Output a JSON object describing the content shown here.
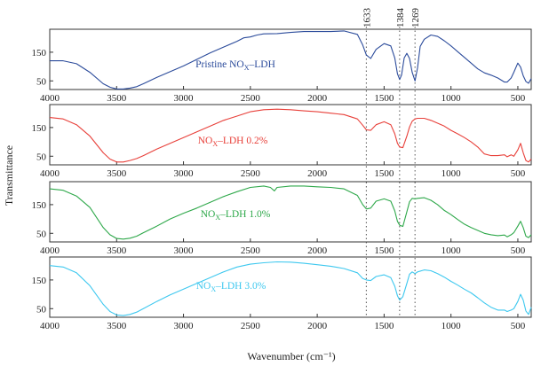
{
  "chart_data": {
    "type": "line",
    "xlabel": "Wavenumber (cm⁻¹)",
    "ylabel": "Transmittance",
    "xlim": [
      4000,
      400
    ],
    "ylim": [
      20,
      230
    ],
    "x_ticks": [
      4000,
      3500,
      3000,
      2500,
      2000,
      1500,
      1000,
      500
    ],
    "y_ticks": [
      50,
      150
    ],
    "reference_lines": [
      {
        "x": 1633,
        "label": "1633"
      },
      {
        "x": 1384,
        "label": "1384"
      },
      {
        "x": 1269,
        "label": "1269"
      }
    ],
    "series": [
      {
        "name": "Pristine NOₓ–LDH",
        "label_main": "Pristine NO",
        "label_sub": "X",
        "label_tail": "–LDH",
        "color": "#2b4b9b",
        "x": [
          4000,
          3900,
          3800,
          3700,
          3600,
          3550,
          3500,
          3450,
          3400,
          3350,
          3300,
          3200,
          3100,
          3000,
          2900,
          2800,
          2700,
          2600,
          2550,
          2500,
          2450,
          2400,
          2300,
          2200,
          2100,
          2000,
          1900,
          1800,
          1700,
          1660,
          1633,
          1600,
          1560,
          1500,
          1450,
          1420,
          1400,
          1384,
          1370,
          1350,
          1330,
          1310,
          1290,
          1269,
          1250,
          1230,
          1200,
          1150,
          1100,
          1050,
          1000,
          950,
          900,
          850,
          800,
          750,
          700,
          650,
          600,
          580,
          550,
          530,
          500,
          480,
          460,
          440,
          420,
          400
        ],
        "y": [
          120,
          120,
          110,
          80,
          40,
          28,
          22,
          22,
          25,
          30,
          40,
          62,
          82,
          102,
          125,
          148,
          168,
          188,
          200,
          203,
          210,
          214,
          215,
          219,
          222,
          222,
          222,
          224,
          212,
          175,
          140,
          128,
          160,
          180,
          172,
          130,
          75,
          55,
          70,
          130,
          146,
          128,
          80,
          50,
          95,
          170,
          195,
          210,
          205,
          190,
          172,
          152,
          132,
          112,
          92,
          78,
          70,
          60,
          46,
          46,
          60,
          80,
          112,
          98,
          68,
          48,
          42,
          58
        ]
      },
      {
        "name": "NOₓ–LDH 0.2%",
        "label_main": "NO",
        "label_sub": "X",
        "label_tail": "–LDH 0.2%",
        "color": "#e8403a",
        "x": [
          4000,
          3900,
          3800,
          3700,
          3600,
          3550,
          3500,
          3450,
          3400,
          3350,
          3300,
          3200,
          3100,
          3000,
          2900,
          2800,
          2700,
          2600,
          2500,
          2400,
          2300,
          2200,
          2100,
          2000,
          1900,
          1800,
          1700,
          1660,
          1633,
          1600,
          1560,
          1500,
          1450,
          1420,
          1400,
          1384,
          1360,
          1330,
          1310,
          1290,
          1269,
          1250,
          1200,
          1150,
          1100,
          1050,
          1000,
          950,
          900,
          850,
          800,
          750,
          700,
          650,
          600,
          580,
          550,
          530,
          500,
          480,
          460,
          440,
          420,
          400
        ],
        "y": [
          185,
          180,
          160,
          120,
          62,
          40,
          30,
          30,
          35,
          42,
          52,
          75,
          95,
          115,
          135,
          155,
          175,
          190,
          205,
          212,
          214,
          212,
          208,
          205,
          200,
          195,
          180,
          158,
          142,
          140,
          160,
          170,
          160,
          128,
          95,
          82,
          80,
          120,
          152,
          172,
          180,
          182,
          182,
          175,
          165,
          155,
          140,
          128,
          115,
          100,
          82,
          58,
          52,
          52,
          55,
          48,
          55,
          50,
          72,
          95,
          62,
          35,
          30,
          40
        ]
      },
      {
        "name": "NOₓ–LDH 1.0%",
        "label_main": "NO",
        "label_sub": "X",
        "label_tail": "–LDH 1.0%",
        "color": "#2ea84a",
        "x": [
          4000,
          3900,
          3800,
          3700,
          3600,
          3550,
          3500,
          3450,
          3400,
          3350,
          3300,
          3200,
          3100,
          3000,
          2900,
          2800,
          2700,
          2600,
          2500,
          2400,
          2350,
          2320,
          2300,
          2200,
          2100,
          2000,
          1900,
          1800,
          1700,
          1660,
          1633,
          1600,
          1560,
          1500,
          1450,
          1420,
          1400,
          1384,
          1360,
          1330,
          1310,
          1290,
          1269,
          1250,
          1200,
          1150,
          1100,
          1050,
          1000,
          950,
          900,
          850,
          800,
          750,
          700,
          650,
          600,
          580,
          550,
          530,
          500,
          480,
          460,
          440,
          420,
          400
        ],
        "y": [
          205,
          200,
          180,
          140,
          70,
          45,
          32,
          30,
          33,
          40,
          52,
          75,
          100,
          120,
          138,
          158,
          178,
          195,
          210,
          215,
          210,
          198,
          210,
          215,
          215,
          212,
          210,
          205,
          182,
          150,
          135,
          138,
          162,
          170,
          162,
          128,
          92,
          78,
          74,
          125,
          160,
          172,
          170,
          172,
          174,
          165,
          150,
          130,
          115,
          98,
          82,
          70,
          60,
          50,
          45,
          42,
          44,
          38,
          45,
          52,
          75,
          92,
          70,
          40,
          35,
          45
        ]
      },
      {
        "name": "NOₓ–LDH 3.0%",
        "label_main": "NO",
        "label_sub": "X",
        "label_tail": "–LDH 3.0%",
        "color": "#3ec8ef",
        "x": [
          4000,
          3900,
          3800,
          3700,
          3600,
          3550,
          3500,
          3450,
          3400,
          3350,
          3300,
          3200,
          3100,
          3000,
          2900,
          2800,
          2700,
          2600,
          2500,
          2400,
          2300,
          2200,
          2100,
          2000,
          1900,
          1800,
          1700,
          1660,
          1633,
          1600,
          1560,
          1500,
          1450,
          1420,
          1400,
          1384,
          1360,
          1330,
          1310,
          1290,
          1269,
          1250,
          1200,
          1150,
          1100,
          1050,
          1000,
          950,
          900,
          850,
          800,
          750,
          700,
          650,
          600,
          580,
          550,
          530,
          500,
          480,
          460,
          440,
          420,
          400
        ],
        "y": [
          200,
          195,
          175,
          130,
          65,
          40,
          28,
          26,
          30,
          38,
          50,
          75,
          98,
          118,
          138,
          158,
          178,
          195,
          205,
          210,
          213,
          212,
          208,
          203,
          198,
          190,
          175,
          155,
          150,
          148,
          162,
          168,
          158,
          128,
          95,
          80,
          92,
          138,
          170,
          178,
          172,
          178,
          185,
          182,
          172,
          160,
          145,
          132,
          118,
          105,
          88,
          70,
          55,
          45,
          45,
          40,
          45,
          50,
          75,
          100,
          80,
          42,
          30,
          55
        ]
      }
    ]
  }
}
